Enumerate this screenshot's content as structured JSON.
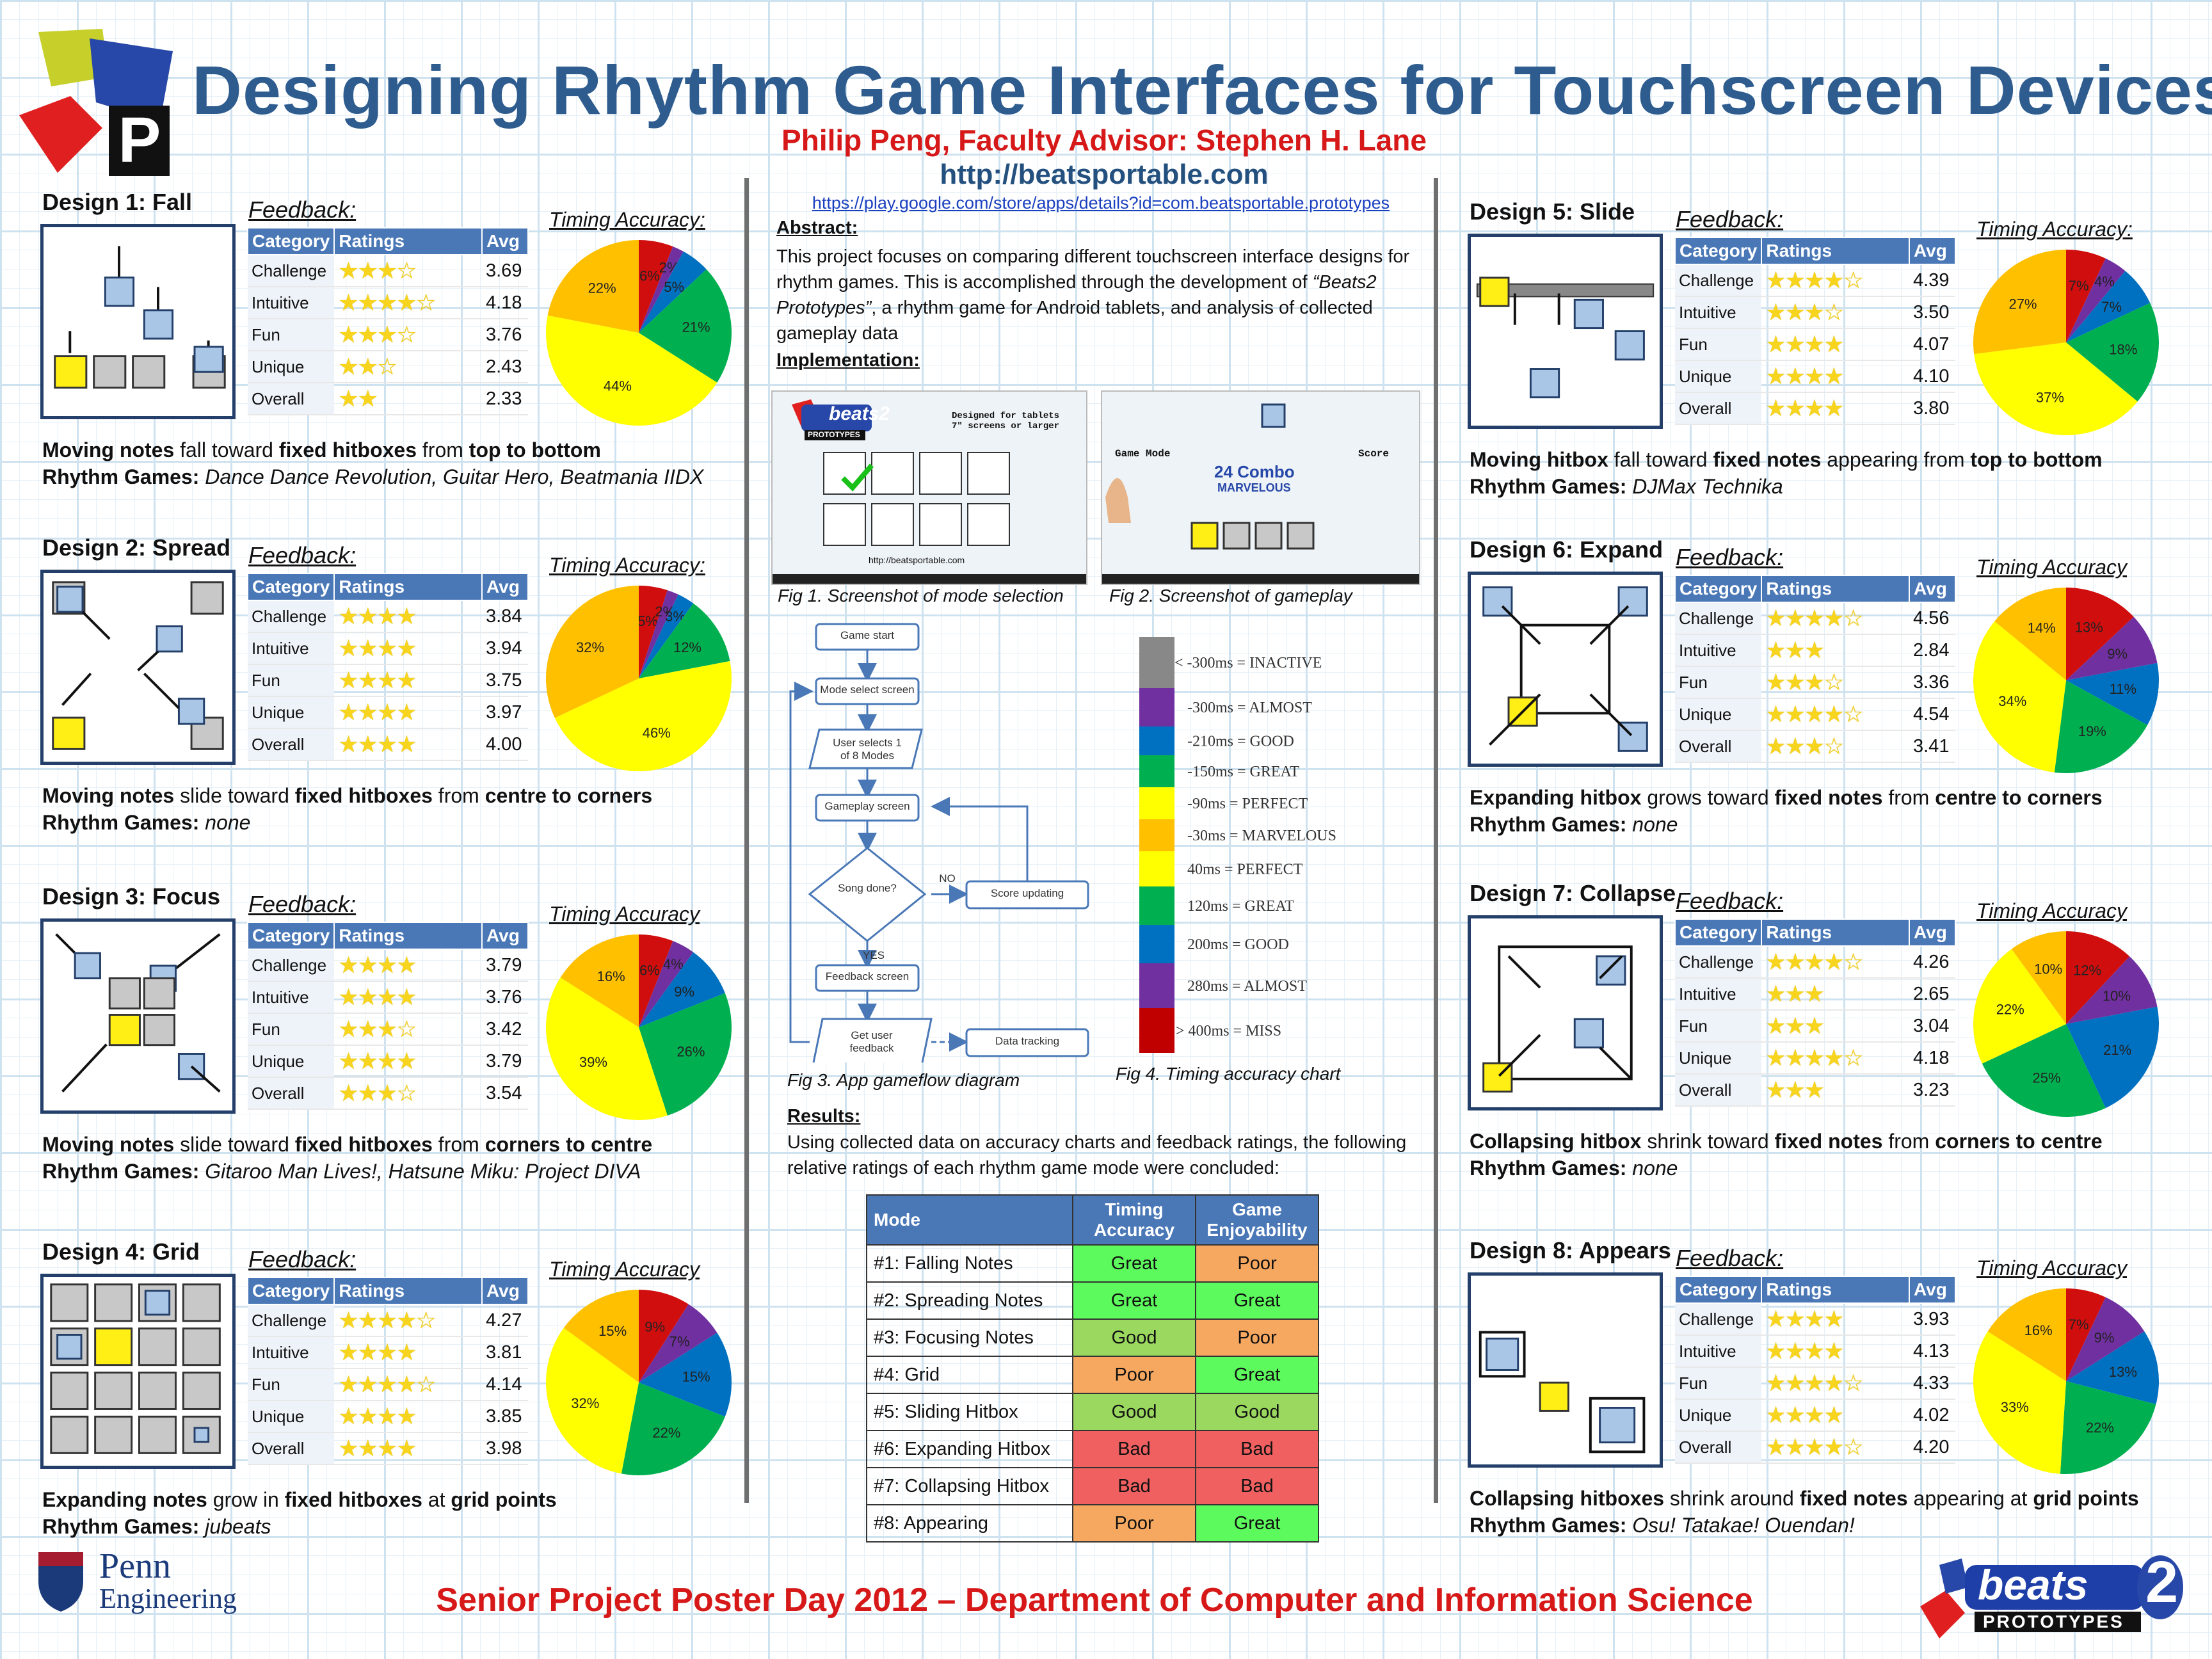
{
  "header": {
    "title": "Designing Rhythm Game Interfaces for Touchscreen Devices",
    "authors": "Philip Peng, Faculty Advisor: Stephen H. Lane",
    "url": "http://beatsportable.com",
    "play_url": "https://play.google.com/store/apps/details?id=com.beatsportable.prototypes"
  },
  "labels": {
    "feedback": "Feedback:",
    "timing_colon": "Timing Accuracy:",
    "timing": "Timing Accuracy",
    "col_category": "Category",
    "col_ratings": "Ratings",
    "col_avg": "Avg",
    "rhythm_games": "Rhythm Games:"
  },
  "colors": {
    "pie": [
      "#d10e0e",
      "#7030a0",
      "#0070c0",
      "#00b050",
      "#ffff00",
      "#ffc000"
    ],
    "title_blue": "#2e5c8e",
    "accent_red": "#d61818"
  },
  "designs": [
    {
      "name": "Design 1: Fall",
      "ta_label": "Timing Accuracy:",
      "ratings": [
        [
          "Challenge",
          3.69,
          "★★★☆"
        ],
        [
          "Intuitive",
          4.18,
          "★★★★☆"
        ],
        [
          "Fun",
          3.76,
          "★★★☆"
        ],
        [
          "Unique",
          2.43,
          "★★☆"
        ],
        [
          "Overall",
          2.33,
          "★★"
        ]
      ],
      "pie": [
        6,
        2,
        5,
        21,
        44,
        22
      ],
      "pie_labels": [
        "6%",
        "2%",
        "5%",
        "21%",
        "44%",
        "22%"
      ],
      "desc_parts": [
        "Moving notes",
        " fall toward ",
        "fixed hitboxes",
        " from ",
        "top to bottom"
      ],
      "games": "Dance Dance Revolution, Guitar Hero, Beatmania IIDX"
    },
    {
      "name": "Design 2: Spread",
      "ta_label": "Timing Accuracy:",
      "ratings": [
        [
          "Challenge",
          3.84,
          "★★★★"
        ],
        [
          "Intuitive",
          3.94,
          "★★★★"
        ],
        [
          "Fun",
          3.75,
          "★★★★"
        ],
        [
          "Unique",
          3.97,
          "★★★★"
        ],
        [
          "Overall",
          4.0,
          "★★★★"
        ]
      ],
      "pie": [
        5,
        2,
        3,
        12,
        46,
        32
      ],
      "pie_labels": [
        "5%",
        "2%",
        "3%",
        "12%",
        "46%",
        "32%"
      ],
      "desc_parts": [
        "Moving notes",
        " slide toward ",
        "fixed hitboxes",
        " from ",
        "centre to corners"
      ],
      "games": "none"
    },
    {
      "name": "Design 3: Focus",
      "ta_label": "Timing Accuracy",
      "ratings": [
        [
          "Challenge",
          3.79,
          "★★★★"
        ],
        [
          "Intuitive",
          3.76,
          "★★★★"
        ],
        [
          "Fun",
          3.42,
          "★★★☆"
        ],
        [
          "Unique",
          3.79,
          "★★★★"
        ],
        [
          "Overall",
          3.54,
          "★★★☆"
        ]
      ],
      "pie": [
        6,
        4,
        9,
        26,
        39,
        16
      ],
      "pie_labels": [
        "6%",
        "4%",
        "9%",
        "26%",
        "39%",
        "16%"
      ],
      "desc_parts": [
        "Moving notes",
        " slide toward ",
        "fixed hitboxes",
        " from ",
        "corners to centre"
      ],
      "games": "Gitaroo Man Lives!, Hatsune Miku: Project DIVA"
    },
    {
      "name": "Design 4: Grid",
      "ta_label": "Timing Accuracy",
      "ratings": [
        [
          "Challenge",
          4.27,
          "★★★★☆"
        ],
        [
          "Intuitive",
          3.81,
          "★★★★"
        ],
        [
          "Fun",
          4.14,
          "★★★★☆"
        ],
        [
          "Unique",
          3.85,
          "★★★★"
        ],
        [
          "Overall",
          3.98,
          "★★★★"
        ]
      ],
      "pie": [
        9,
        7,
        15,
        22,
        32,
        15
      ],
      "pie_labels": [
        "9%",
        "7%",
        "15%",
        "22%",
        "32%",
        "15%"
      ],
      "desc_parts": [
        "Expanding notes",
        " grow in ",
        "fixed hitboxes",
        " at ",
        "grid points"
      ],
      "games": "jubeats"
    },
    {
      "name": "Design 5: Slide",
      "ta_label": "Timing Accuracy:",
      "ratings": [
        [
          "Challenge",
          4.39,
          "★★★★☆"
        ],
        [
          "Intuitive",
          3.5,
          "★★★☆"
        ],
        [
          "Fun",
          4.07,
          "★★★★"
        ],
        [
          "Unique",
          4.1,
          "★★★★"
        ],
        [
          "Overall",
          3.8,
          "★★★★"
        ]
      ],
      "pie": [
        7,
        4,
        7,
        18,
        37,
        27
      ],
      "pie_labels": [
        "7%",
        "4%",
        "7%",
        "18%",
        "37%",
        "27%"
      ],
      "desc_parts": [
        "Moving hitbox",
        " fall toward ",
        "fixed notes",
        " appearing from ",
        "top to bottom"
      ],
      "games": "DJMax Technika"
    },
    {
      "name": "Design 6: Expand",
      "ta_label": "Timing Accuracy",
      "ratings": [
        [
          "Challenge",
          4.56,
          "★★★★☆"
        ],
        [
          "Intuitive",
          2.84,
          "★★★"
        ],
        [
          "Fun",
          3.36,
          "★★★☆"
        ],
        [
          "Unique",
          4.54,
          "★★★★☆"
        ],
        [
          "Overall",
          3.41,
          "★★★☆"
        ]
      ],
      "pie": [
        13,
        9,
        11,
        19,
        34,
        14
      ],
      "pie_labels": [
        "13%",
        "9%",
        "11%",
        "19%",
        "34%",
        "14%"
      ],
      "desc_parts": [
        "Expanding hitbox",
        " grows toward ",
        "fixed notes",
        " from ",
        "centre to corners"
      ],
      "games": "none"
    },
    {
      "name": "Design 7: Collapse",
      "ta_label": "Timing Accuracy",
      "ratings": [
        [
          "Challenge",
          4.26,
          "★★★★☆"
        ],
        [
          "Intuitive",
          2.65,
          "★★★"
        ],
        [
          "Fun",
          3.04,
          "★★★"
        ],
        [
          "Unique",
          4.18,
          "★★★★☆"
        ],
        [
          "Overall",
          3.23,
          "★★★"
        ]
      ],
      "pie": [
        12,
        10,
        21,
        25,
        22,
        10
      ],
      "pie_labels": [
        "12%",
        "10%",
        "21%",
        "25%",
        "22%",
        "10%"
      ],
      "desc_parts": [
        "Collapsing hitbox",
        " shrink toward ",
        "fixed notes",
        " from ",
        "corners to centre"
      ],
      "games": "none"
    },
    {
      "name": "Design 8: Appears",
      "ta_label": "Timing Accuracy",
      "ratings": [
        [
          "Challenge",
          3.93,
          "★★★★"
        ],
        [
          "Intuitive",
          4.13,
          "★★★★"
        ],
        [
          "Fun",
          4.33,
          "★★★★☆"
        ],
        [
          "Unique",
          4.02,
          "★★★★"
        ],
        [
          "Overall",
          4.2,
          "★★★★☆"
        ]
      ],
      "pie": [
        7,
        9,
        13,
        22,
        33,
        16
      ],
      "pie_labels": [
        "7%",
        "9%",
        "13%",
        "22%",
        "33%",
        "16%"
      ],
      "desc_parts": [
        "Collapsing hitboxes",
        " shrink around ",
        "fixed notes",
        " appearing at ",
        "grid points"
      ],
      "games": "Osu! Tatakae! Ouendan!"
    }
  ],
  "center": {
    "abstract_title": "Abstract:",
    "abstract_text": "This project focuses on comparing different touchscreen interface designs for rhythm games. This is accomplished through the development of",
    "abstract_italic": "“Beats2 Prototypes”",
    "abstract_text2": ", a rhythm game for Android tablets, and analysis of collected gameplay data",
    "impl_title": "Implementation:",
    "fig1": "Fig 1. Screenshot of mode selection",
    "fig2": "Fig 2. Screenshot of gameplay",
    "fig3": "Fig 3. App gameflow diagram",
    "fig4": "Fig 4. Timing accuracy chart",
    "screen1_logo": "beats2",
    "screen1_sub": "PROTOTYPES",
    "screen1_note": "Designed for tablets 7\" screens or larger",
    "screen1_url": "http://beatsportable.com",
    "screen2_mode": "Game Mode",
    "screen2_combo": "24 Combo",
    "screen2_judgement": "MARVELOUS",
    "screen2_score": "Score",
    "flow": [
      "Game start",
      "Mode select screen",
      "User selects 1 of 8 Modes",
      "Gameplay screen",
      "Song done?",
      "Score updating",
      "Feedback screen",
      "Get user feedback",
      "Data tracking",
      "NO",
      "YES"
    ],
    "timing_rows": [
      "< -300ms = INACTIVE",
      "-300ms = ALMOST",
      "-210ms = GOOD",
      "-150ms = GREAT",
      "-90ms = PERFECT",
      "-30ms = MARVELOUS",
      "40ms = PERFECT",
      "120ms = GREAT",
      "200ms = GOOD",
      "280ms = ALMOST",
      "> 400ms = MISS"
    ],
    "results_title": "Results:",
    "results_text": "Using collected data on accuracy charts and feedback ratings, the following relative ratings of each rhythm game mode were concluded:",
    "results_headers": [
      "Mode",
      "Timing Accuracy",
      "Game Enjoyability"
    ],
    "results": [
      [
        "#1: Falling Notes",
        "Great",
        "Poor"
      ],
      [
        "#2: Spreading Notes",
        "Great",
        "Great"
      ],
      [
        "#3: Focusing Notes",
        "Good",
        "Poor"
      ],
      [
        "#4: Grid",
        "Poor",
        "Great"
      ],
      [
        "#5: Sliding Hitbox",
        "Good",
        "Good"
      ],
      [
        "#6: Expanding Hitbox",
        "Bad",
        "Bad"
      ],
      [
        "#7: Collapsing Hitbox",
        "Bad",
        "Bad"
      ],
      [
        "#8: Appearing",
        "Poor",
        "Great"
      ]
    ]
  },
  "logos": {
    "penn_line1": "Penn",
    "penn_line2": "Engineering",
    "beats_line1": "beats",
    "beats_num": "2",
    "beats_line2": "PROTOTYPES",
    "corner_letter": "P"
  },
  "footer": "Senior Project Poster Day 2012 – Department of Computer and Information Science"
}
